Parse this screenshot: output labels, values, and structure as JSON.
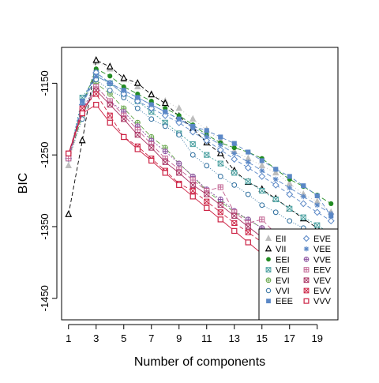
{
  "chart_data": {
    "type": "line",
    "title": "",
    "xlabel": "Number of components",
    "ylabel": "BIC",
    "xlim": [
      0.5,
      20.5
    ],
    "ylim": [
      -1480,
      -1100
    ],
    "x": [
      1,
      2,
      3,
      4,
      5,
      6,
      7,
      8,
      9,
      10,
      11,
      12,
      13,
      14,
      15,
      16,
      17,
      18,
      19,
      20
    ],
    "x_ticks": [
      1,
      3,
      5,
      7,
      9,
      11,
      13,
      15,
      17,
      19
    ],
    "y_ticks": [
      -1450,
      -1350,
      -1250,
      -1150
    ],
    "y_tick_labels": [
      "-1450",
      "-1350",
      "-1250",
      "-1150"
    ],
    "grid": false,
    "legend_position": "bottom-right",
    "legend_columns": 2,
    "series": [
      {
        "name": "EII",
        "color": "#bebebe",
        "marker": "triangle-filled",
        "dash": "1,3",
        "values": [
          -1265,
          -1190,
          -1120,
          -1130,
          -1145,
          -1155,
          -1165,
          -1175,
          -1185,
          -1200,
          -1215,
          -1230,
          -1245,
          -1255,
          -1265,
          -1275,
          -1290,
          -1305,
          -1315,
          -1330
        ]
      },
      {
        "name": "VII",
        "color": "#000000",
        "marker": "triangle-open",
        "dash": "5,3",
        "values": [
          -1333,
          -1230,
          -1118,
          -1127,
          -1143,
          -1150,
          -1166,
          -1178,
          -1196,
          -1213,
          -1233,
          -1248,
          -1272,
          -1288,
          -1298,
          -1311,
          -1325,
          -1339,
          -1352,
          -1365
        ]
      },
      {
        "name": "EEI",
        "color": "#228b22",
        "marker": "circle-filled",
        "dash": "6,3",
        "values": [
          -1255,
          -1180,
          -1130,
          -1140,
          -1155,
          -1165,
          -1175,
          -1185,
          -1195,
          -1208,
          -1222,
          -1233,
          -1240,
          -1246,
          -1255,
          -1270,
          -1284,
          -1294,
          -1306,
          -1318
        ]
      },
      {
        "name": "VEI",
        "color": "#4aa0a0",
        "marker": "box-x",
        "dash": "2,2",
        "values": [
          -1255,
          -1170,
          -1140,
          -1150,
          -1165,
          -1175,
          -1190,
          -1205,
          -1220,
          -1235,
          -1250,
          -1262,
          -1275,
          -1287,
          -1300,
          -1312,
          -1325,
          -1337,
          -1348,
          -1360
        ]
      },
      {
        "name": "EVI",
        "color": "#6aa84f",
        "marker": "circle-plus",
        "dash": "6,3",
        "values": [
          -1255,
          -1195,
          -1150,
          -1165,
          -1185,
          -1205,
          -1225,
          -1240,
          -1262,
          -1280,
          -1300,
          -1315,
          -1330,
          -1340,
          -1352,
          -1360,
          -1372,
          -1382,
          -1390,
          -1400
        ]
      },
      {
        "name": "VVI",
        "color": "#2f6f9f",
        "marker": "circle-open",
        "dash": "1,2",
        "values": [
          -1255,
          -1200,
          -1145,
          -1160,
          -1170,
          -1185,
          -1200,
          -1210,
          -1222,
          -1250,
          -1265,
          -1280,
          -1292,
          -1305,
          -1320,
          -1330,
          -1342,
          -1352,
          -1362,
          -1374
        ]
      },
      {
        "name": "EEE",
        "color": "#5a87c6",
        "marker": "square-filled",
        "dash": "5,3",
        "values": [
          -1255,
          -1175,
          -1135,
          -1150,
          -1160,
          -1170,
          -1180,
          -1190,
          -1200,
          -1210,
          -1216,
          -1225,
          -1234,
          -1246,
          -1258,
          -1270,
          -1280,
          -1293,
          -1307,
          -1335
        ]
      },
      {
        "name": "EVE",
        "color": "#5a87c6",
        "marker": "diamond-open",
        "dash": "5,3",
        "values": [
          -1255,
          -1180,
          -1135,
          -1150,
          -1165,
          -1175,
          -1185,
          -1195,
          -1205,
          -1218,
          -1230,
          -1243,
          -1256,
          -1268,
          -1280,
          -1292,
          -1305,
          -1318,
          -1330,
          -1342
        ]
      },
      {
        "name": "VEE",
        "color": "#5a87c6",
        "marker": "asterisk",
        "dash": "6,3",
        "values": [
          -1255,
          -1180,
          -1140,
          -1150,
          -1160,
          -1170,
          -1180,
          -1190,
          -1200,
          -1212,
          -1224,
          -1236,
          -1248,
          -1260,
          -1272,
          -1284,
          -1296,
          -1308,
          -1320,
          -1332
        ]
      },
      {
        "name": "VVE",
        "color": "#8a4f9e",
        "marker": "circle-plus",
        "dash": "2,2",
        "values": [
          -1255,
          -1185,
          -1155,
          -1175,
          -1190,
          -1210,
          -1230,
          -1245,
          -1262,
          -1280,
          -1298,
          -1312,
          -1328,
          -1340,
          -1352,
          -1362,
          -1372,
          -1382,
          -1392,
          -1402
        ]
      },
      {
        "name": "EEV",
        "color": "#c06090",
        "marker": "box-plus",
        "dash": "6,3",
        "values": [
          -1255,
          -1190,
          -1155,
          -1175,
          -1195,
          -1215,
          -1235,
          -1255,
          -1270,
          -1285,
          -1300,
          -1295,
          -1330,
          -1345,
          -1340,
          -1360,
          -1372,
          -1384,
          -1396,
          -1408
        ]
      },
      {
        "name": "VEV",
        "color": "#a83060",
        "marker": "box-x",
        "dash": "0",
        "values": [
          -1248,
          -1190,
          -1160,
          -1180,
          -1200,
          -1222,
          -1240,
          -1260,
          -1275,
          -1292,
          -1305,
          -1320,
          -1335,
          -1350,
          -1365,
          -1378,
          -1392,
          -1405,
          -1418,
          -1430
        ]
      },
      {
        "name": "EVV",
        "color": "#cc2244",
        "marker": "box-x",
        "dash": "5,3",
        "values": [
          -1248,
          -1185,
          -1165,
          -1195,
          -1225,
          -1238,
          -1255,
          -1272,
          -1290,
          -1300,
          -1315,
          -1330,
          -1345,
          -1358,
          -1372,
          -1385,
          -1398,
          -1410,
          -1422,
          -1435
        ]
      },
      {
        "name": "VVV",
        "color": "#cc2244",
        "marker": "square-open",
        "dash": "0",
        "values": [
          -1248,
          -1192,
          -1180,
          -1205,
          -1225,
          -1242,
          -1258,
          -1275,
          -1292,
          -1308,
          -1324,
          -1340,
          -1356,
          -1372,
          -1388,
          -1402,
          -1416,
          -1430,
          -1444,
          -1456
        ]
      }
    ]
  }
}
